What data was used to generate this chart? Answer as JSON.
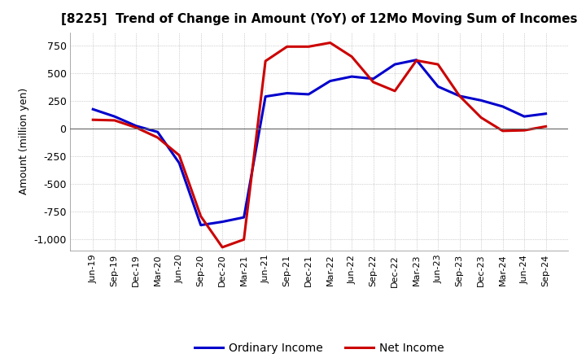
{
  "title": "[8225]  Trend of Change in Amount (YoY) of 12Mo Moving Sum of Incomes",
  "ylabel": "Amount (million yen)",
  "ylim": [
    -1100,
    870
  ],
  "yticks": [
    -1000,
    -750,
    -500,
    -250,
    0,
    250,
    500,
    750
  ],
  "background_color": "#ffffff",
  "plot_bg_color": "#ffffff",
  "grid_color": "#aaaaaa",
  "ordinary_income_color": "#0000cc",
  "net_income_color": "#cc0000",
  "line_width": 2.2,
  "dates": [
    "Jun-19",
    "Sep-19",
    "Dec-19",
    "Mar-20",
    "Jun-20",
    "Sep-20",
    "Dec-20",
    "Mar-21",
    "Jun-21",
    "Sep-21",
    "Dec-21",
    "Mar-22",
    "Jun-22",
    "Sep-22",
    "Dec-22",
    "Mar-23",
    "Jun-23",
    "Sep-23",
    "Dec-23",
    "Mar-24",
    "Jun-24",
    "Sep-24"
  ],
  "ordinary_income": [
    175,
    110,
    25,
    -30,
    -310,
    -870,
    -840,
    -800,
    290,
    320,
    310,
    430,
    470,
    450,
    580,
    620,
    380,
    295,
    255,
    200,
    110,
    135
  ],
  "net_income": [
    80,
    75,
    10,
    -80,
    -240,
    -790,
    -1070,
    -1000,
    610,
    740,
    740,
    775,
    650,
    420,
    340,
    615,
    580,
    295,
    100,
    -20,
    -15,
    20
  ],
  "legend_labels": [
    "Ordinary Income",
    "Net Income"
  ]
}
